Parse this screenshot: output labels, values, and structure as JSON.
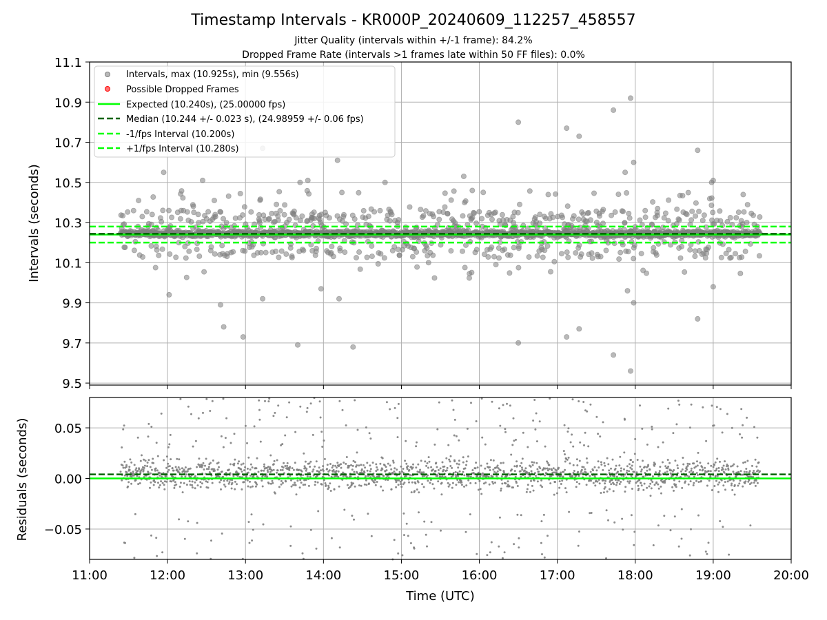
{
  "title": "Timestamp Intervals - KR000P_20240609_112257_458557",
  "subtitle1": "Jitter Quality (intervals within +/-1 frame): 84.2%",
  "subtitle2": "Dropped Frame Rate (intervals >1 frames late within 50 FF files): 0.0%",
  "colors": {
    "points": "#808080",
    "expected": "#00ff00",
    "median": "#006400",
    "fps_interval": "#00ff00",
    "dropped": "#ff0000",
    "grid": "#b0b0b0"
  },
  "chart_data": [
    {
      "type": "scatter",
      "name": "intervals",
      "xlabel": "",
      "ylabel": "Intervals (seconds)",
      "xlim": [
        11.0,
        20.0
      ],
      "ylim": [
        9.49,
        11.1
      ],
      "yticks": [
        9.5,
        9.7,
        9.9,
        10.1,
        10.3,
        10.5,
        10.7,
        10.9,
        11.1
      ],
      "ytick_labels": [
        "9.5",
        "9.7",
        "9.9",
        "10.1",
        "10.3",
        "10.5",
        "10.7",
        "10.9",
        "11.1"
      ],
      "grid": true,
      "legend_position": "top-left",
      "legend": [
        {
          "label": "Intervals, max (10.925s), min (9.556s)",
          "kind": "marker",
          "color": "#808080"
        },
        {
          "label": "Possible Dropped Frames",
          "kind": "marker",
          "color": "#ff0000"
        },
        {
          "label": "Expected (10.240s), (25.00000 fps)",
          "kind": "line",
          "color": "#00ff00",
          "dash": "solid"
        },
        {
          "label": "Median (10.244 +/- 0.023 s), (24.98959 +/- 0.06 fps)",
          "kind": "line",
          "color": "#006400",
          "dash": "dashed"
        },
        {
          "label": "-1/fps Interval (10.200s)",
          "kind": "line",
          "color": "#00ff00",
          "dash": "dashed"
        },
        {
          "label": "+1/fps Interval (10.280s)",
          "kind": "line",
          "color": "#00ff00",
          "dash": "dashed"
        }
      ],
      "reference_lines": {
        "expected": 10.24,
        "median": 10.244,
        "minus_fps": 10.2,
        "plus_fps": 10.28
      },
      "data_range_hours": [
        11.4,
        19.6
      ],
      "max_interval": 10.925,
      "min_interval": 9.556,
      "outlier_points": [
        [
          11.95,
          10.55
        ],
        [
          12.02,
          9.94
        ],
        [
          12.45,
          10.51
        ],
        [
          12.6,
          10.41
        ],
        [
          12.68,
          9.89
        ],
        [
          12.72,
          9.78
        ],
        [
          12.97,
          9.73
        ],
        [
          13.22,
          10.67
        ],
        [
          13.22,
          9.92
        ],
        [
          13.67,
          9.69
        ],
        [
          13.7,
          10.5
        ],
        [
          13.8,
          10.51
        ],
        [
          13.97,
          9.97
        ],
        [
          14.18,
          10.61
        ],
        [
          14.2,
          9.92
        ],
        [
          14.38,
          9.68
        ],
        [
          14.79,
          10.5
        ],
        [
          15.8,
          10.53
        ],
        [
          16.05,
          10.45
        ],
        [
          16.5,
          10.8
        ],
        [
          16.5,
          9.7
        ],
        [
          17.12,
          10.77
        ],
        [
          17.12,
          9.73
        ],
        [
          17.28,
          10.73
        ],
        [
          17.28,
          9.77
        ],
        [
          17.72,
          10.86
        ],
        [
          17.72,
          9.64
        ],
        [
          17.87,
          10.55
        ],
        [
          17.9,
          9.96
        ],
        [
          17.94,
          10.92
        ],
        [
          17.94,
          9.56
        ],
        [
          17.98,
          10.6
        ],
        [
          17.98,
          9.9
        ],
        [
          18.8,
          10.66
        ],
        [
          18.8,
          9.82
        ],
        [
          18.98,
          10.5
        ],
        [
          19.0,
          10.51
        ],
        [
          19.0,
          9.98
        ]
      ]
    },
    {
      "type": "scatter",
      "name": "residuals",
      "xlabel": "Time (UTC)",
      "ylabel": "Residuals (seconds)",
      "xlim": [
        11.0,
        20.0
      ],
      "ylim": [
        -0.08,
        0.08
      ],
      "yticks": [
        -0.05,
        0.0,
        0.05
      ],
      "ytick_labels": [
        "−0.05",
        "0.00",
        "0.05"
      ],
      "xticks": [
        11,
        12,
        13,
        14,
        15,
        16,
        17,
        18,
        19,
        20
      ],
      "xtick_labels": [
        "11:00",
        "12:00",
        "13:00",
        "14:00",
        "15:00",
        "16:00",
        "17:00",
        "18:00",
        "19:00",
        "20:00"
      ],
      "grid": true,
      "reference_lines": {
        "expected": 0.0,
        "median": 0.004
      },
      "data_range_hours": [
        11.4,
        19.6
      ]
    }
  ]
}
